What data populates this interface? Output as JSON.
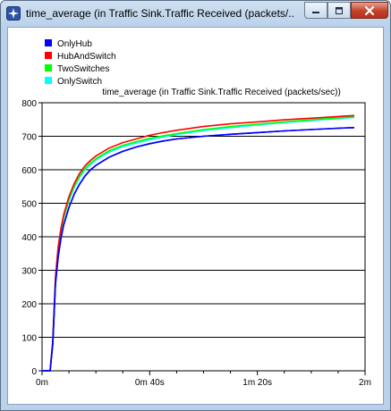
{
  "window": {
    "title": "time_average (in Traffic Sink.Traffic Received (packets/...",
    "icons": {
      "app": "omnet-star-icon",
      "minimize": "minimize-icon",
      "maximize": "maximize-icon",
      "close": "close-icon"
    }
  },
  "chart_data": {
    "type": "line",
    "title": "time_average (in Traffic Sink.Traffic Received (packets/sec))",
    "xlabel": "",
    "ylabel": "",
    "xlim": [
      0,
      120
    ],
    "ylim": [
      0,
      800
    ],
    "x_ticks": [
      {
        "value": 0,
        "label": "0m"
      },
      {
        "value": 40,
        "label": "0m 40s"
      },
      {
        "value": 80,
        "label": "1m 20s"
      },
      {
        "value": 120,
        "label": "2m"
      }
    ],
    "y_ticks": [
      0,
      100,
      200,
      300,
      400,
      500,
      600,
      700,
      800
    ],
    "grid": "horizontal",
    "legend_position": "top-left",
    "series": [
      {
        "name": "OnlyHub",
        "color": "#0000ff",
        "x": [
          0,
          3,
          4,
          5,
          6,
          7,
          8,
          10,
          12,
          14,
          16,
          18,
          20,
          25,
          30,
          35,
          40,
          45,
          50,
          60,
          70,
          80,
          90,
          100,
          110,
          116
        ],
        "y": [
          0,
          0,
          80,
          260,
          340,
          395,
          435,
          488,
          528,
          558,
          582,
          600,
          613,
          638,
          655,
          668,
          678,
          686,
          692,
          700,
          706,
          711,
          716,
          720,
          724,
          726
        ]
      },
      {
        "name": "HubAndSwitch",
        "color": "#ff0000",
        "x": [
          0,
          3,
          4,
          5,
          6,
          7,
          8,
          10,
          12,
          14,
          16,
          18,
          20,
          25,
          30,
          35,
          40,
          45,
          50,
          60,
          70,
          80,
          90,
          100,
          110,
          116
        ],
        "y": [
          0,
          0,
          90,
          280,
          370,
          425,
          465,
          520,
          560,
          590,
          612,
          628,
          641,
          665,
          681,
          692,
          703,
          711,
          718,
          729,
          737,
          743,
          749,
          754,
          759,
          762
        ]
      },
      {
        "name": "TwoSwitches",
        "color": "#00ff00",
        "x": [
          0,
          3,
          4,
          5,
          6,
          7,
          8,
          10,
          12,
          14,
          16,
          18,
          20,
          25,
          30,
          35,
          40,
          45,
          50,
          60,
          70,
          80,
          90,
          100,
          110,
          116
        ],
        "y": [
          0,
          0,
          88,
          275,
          365,
          418,
          458,
          512,
          552,
          582,
          604,
          620,
          633,
          657,
          673,
          684,
          694,
          701,
          708,
          720,
          729,
          736,
          743,
          749,
          755,
          758
        ]
      },
      {
        "name": "OnlySwitch",
        "color": "#00ffff",
        "x": [
          0,
          3,
          4,
          5,
          6,
          7,
          8,
          10,
          12,
          14,
          16,
          18,
          20,
          25,
          30,
          35,
          40,
          45,
          50,
          60,
          70,
          80,
          90,
          100,
          110,
          116
        ],
        "y": [
          0,
          0,
          86,
          272,
          362,
          415,
          455,
          508,
          548,
          578,
          600,
          616,
          629,
          653,
          669,
          680,
          690,
          698,
          705,
          717,
          726,
          734,
          741,
          747,
          753,
          756
        ]
      }
    ]
  }
}
